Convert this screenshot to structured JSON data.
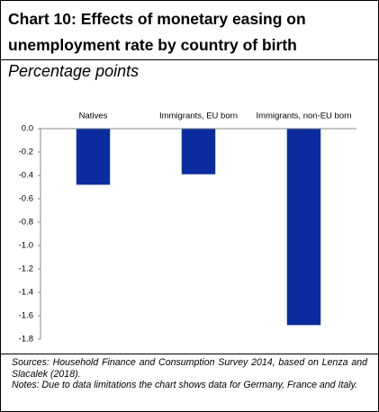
{
  "chart_data": {
    "type": "bar",
    "title": [
      "Chart 10: Effects of monetary easing on",
      "unemployment rate by country of birth"
    ],
    "subtitle": "Percentage points",
    "categories": [
      "Natives",
      "Immigrants, EU born",
      "Immigrants, non-EU born"
    ],
    "values": [
      -0.48,
      -0.39,
      -1.68
    ],
    "color": "#0a2c9e",
    "ylim": [
      -1.8,
      0
    ],
    "yticks": [
      {
        "value": 0,
        "label": "0.0"
      },
      -0.2,
      -0.4,
      -0.6,
      -0.8,
      {
        "value": -1,
        "label": "-1.0"
      },
      -1.2,
      -1.4,
      -1.6,
      -1.8
    ],
    "grid": false,
    "sources": "Sources: Household Finance and Consumption Survey 2014, based on Lenza and Slacalek (2018).",
    "notes": "Notes: Due to data limitations the chart shows data for Germany, France and Italy."
  }
}
